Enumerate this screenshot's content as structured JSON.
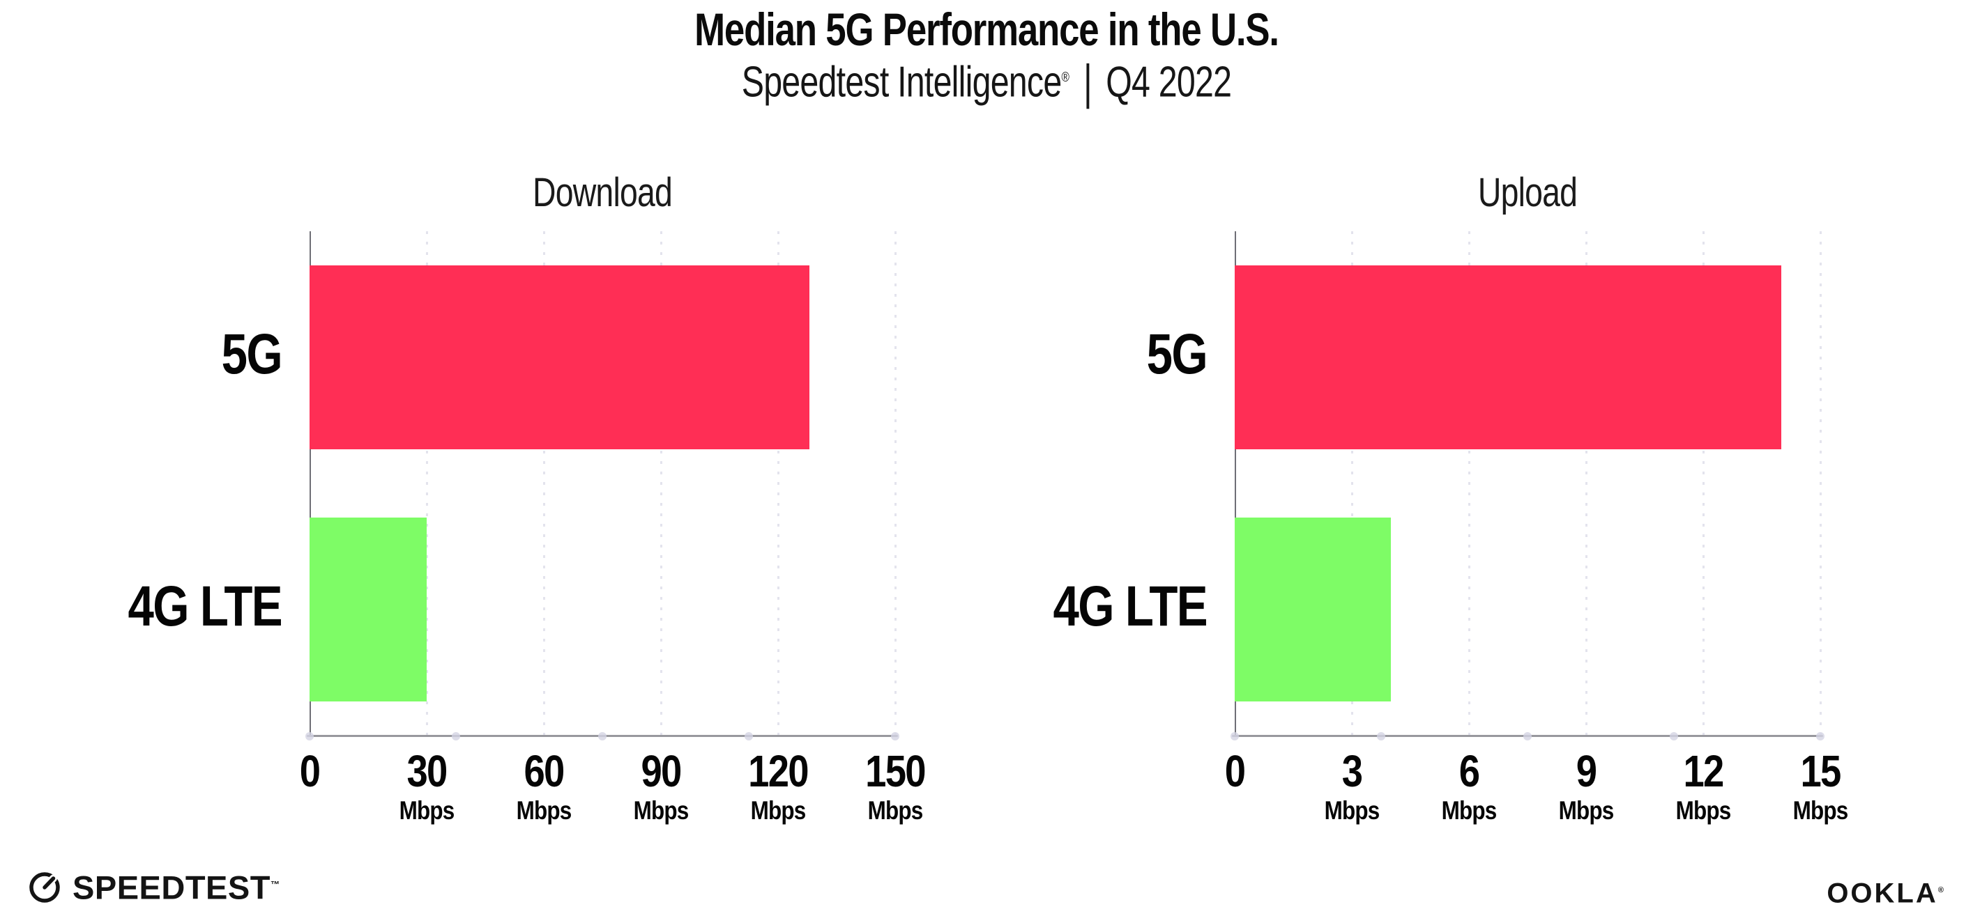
{
  "header": {
    "title": "Median 5G Performance in the U.S.",
    "subtitle": {
      "brand": "Speedtest Intelligence",
      "registered": "®",
      "divider": "|",
      "period": "Q4 2022"
    }
  },
  "chart_data": [
    {
      "type": "bar",
      "orientation": "horizontal",
      "title": "Download",
      "categories": [
        "5G",
        "4G LTE"
      ],
      "values": [
        128,
        30
      ],
      "unit": "Mbps",
      "xlim": [
        0,
        150
      ],
      "xticks": [
        0,
        30,
        60,
        90,
        120,
        150
      ],
      "bar_colors": [
        "#FF2E55",
        "#7EFC66"
      ],
      "grid": "vertical-dotted",
      "legend": "none"
    },
    {
      "type": "bar",
      "orientation": "horizontal",
      "title": "Upload",
      "categories": [
        "5G",
        "4G LTE"
      ],
      "values": [
        14,
        4
      ],
      "unit": "Mbps",
      "xlim": [
        0,
        15
      ],
      "xticks": [
        0,
        3,
        6,
        9,
        12,
        15
      ],
      "bar_colors": [
        "#FF2E55",
        "#7EFC66"
      ],
      "grid": "vertical-dotted",
      "legend": "none"
    }
  ],
  "colors": {
    "bar_5g": "#FF2E55",
    "bar_4g_lte": "#7EFC66",
    "axis_line": "#98989E",
    "gridline": "#E3E3ED",
    "axis_dot": "#D4D4E4",
    "text": "#111111"
  },
  "footer": {
    "speedtest": {
      "text": "SPEEDTEST",
      "trademark": "™"
    },
    "ookla": {
      "text": "OOKLA",
      "registered": "®"
    }
  }
}
